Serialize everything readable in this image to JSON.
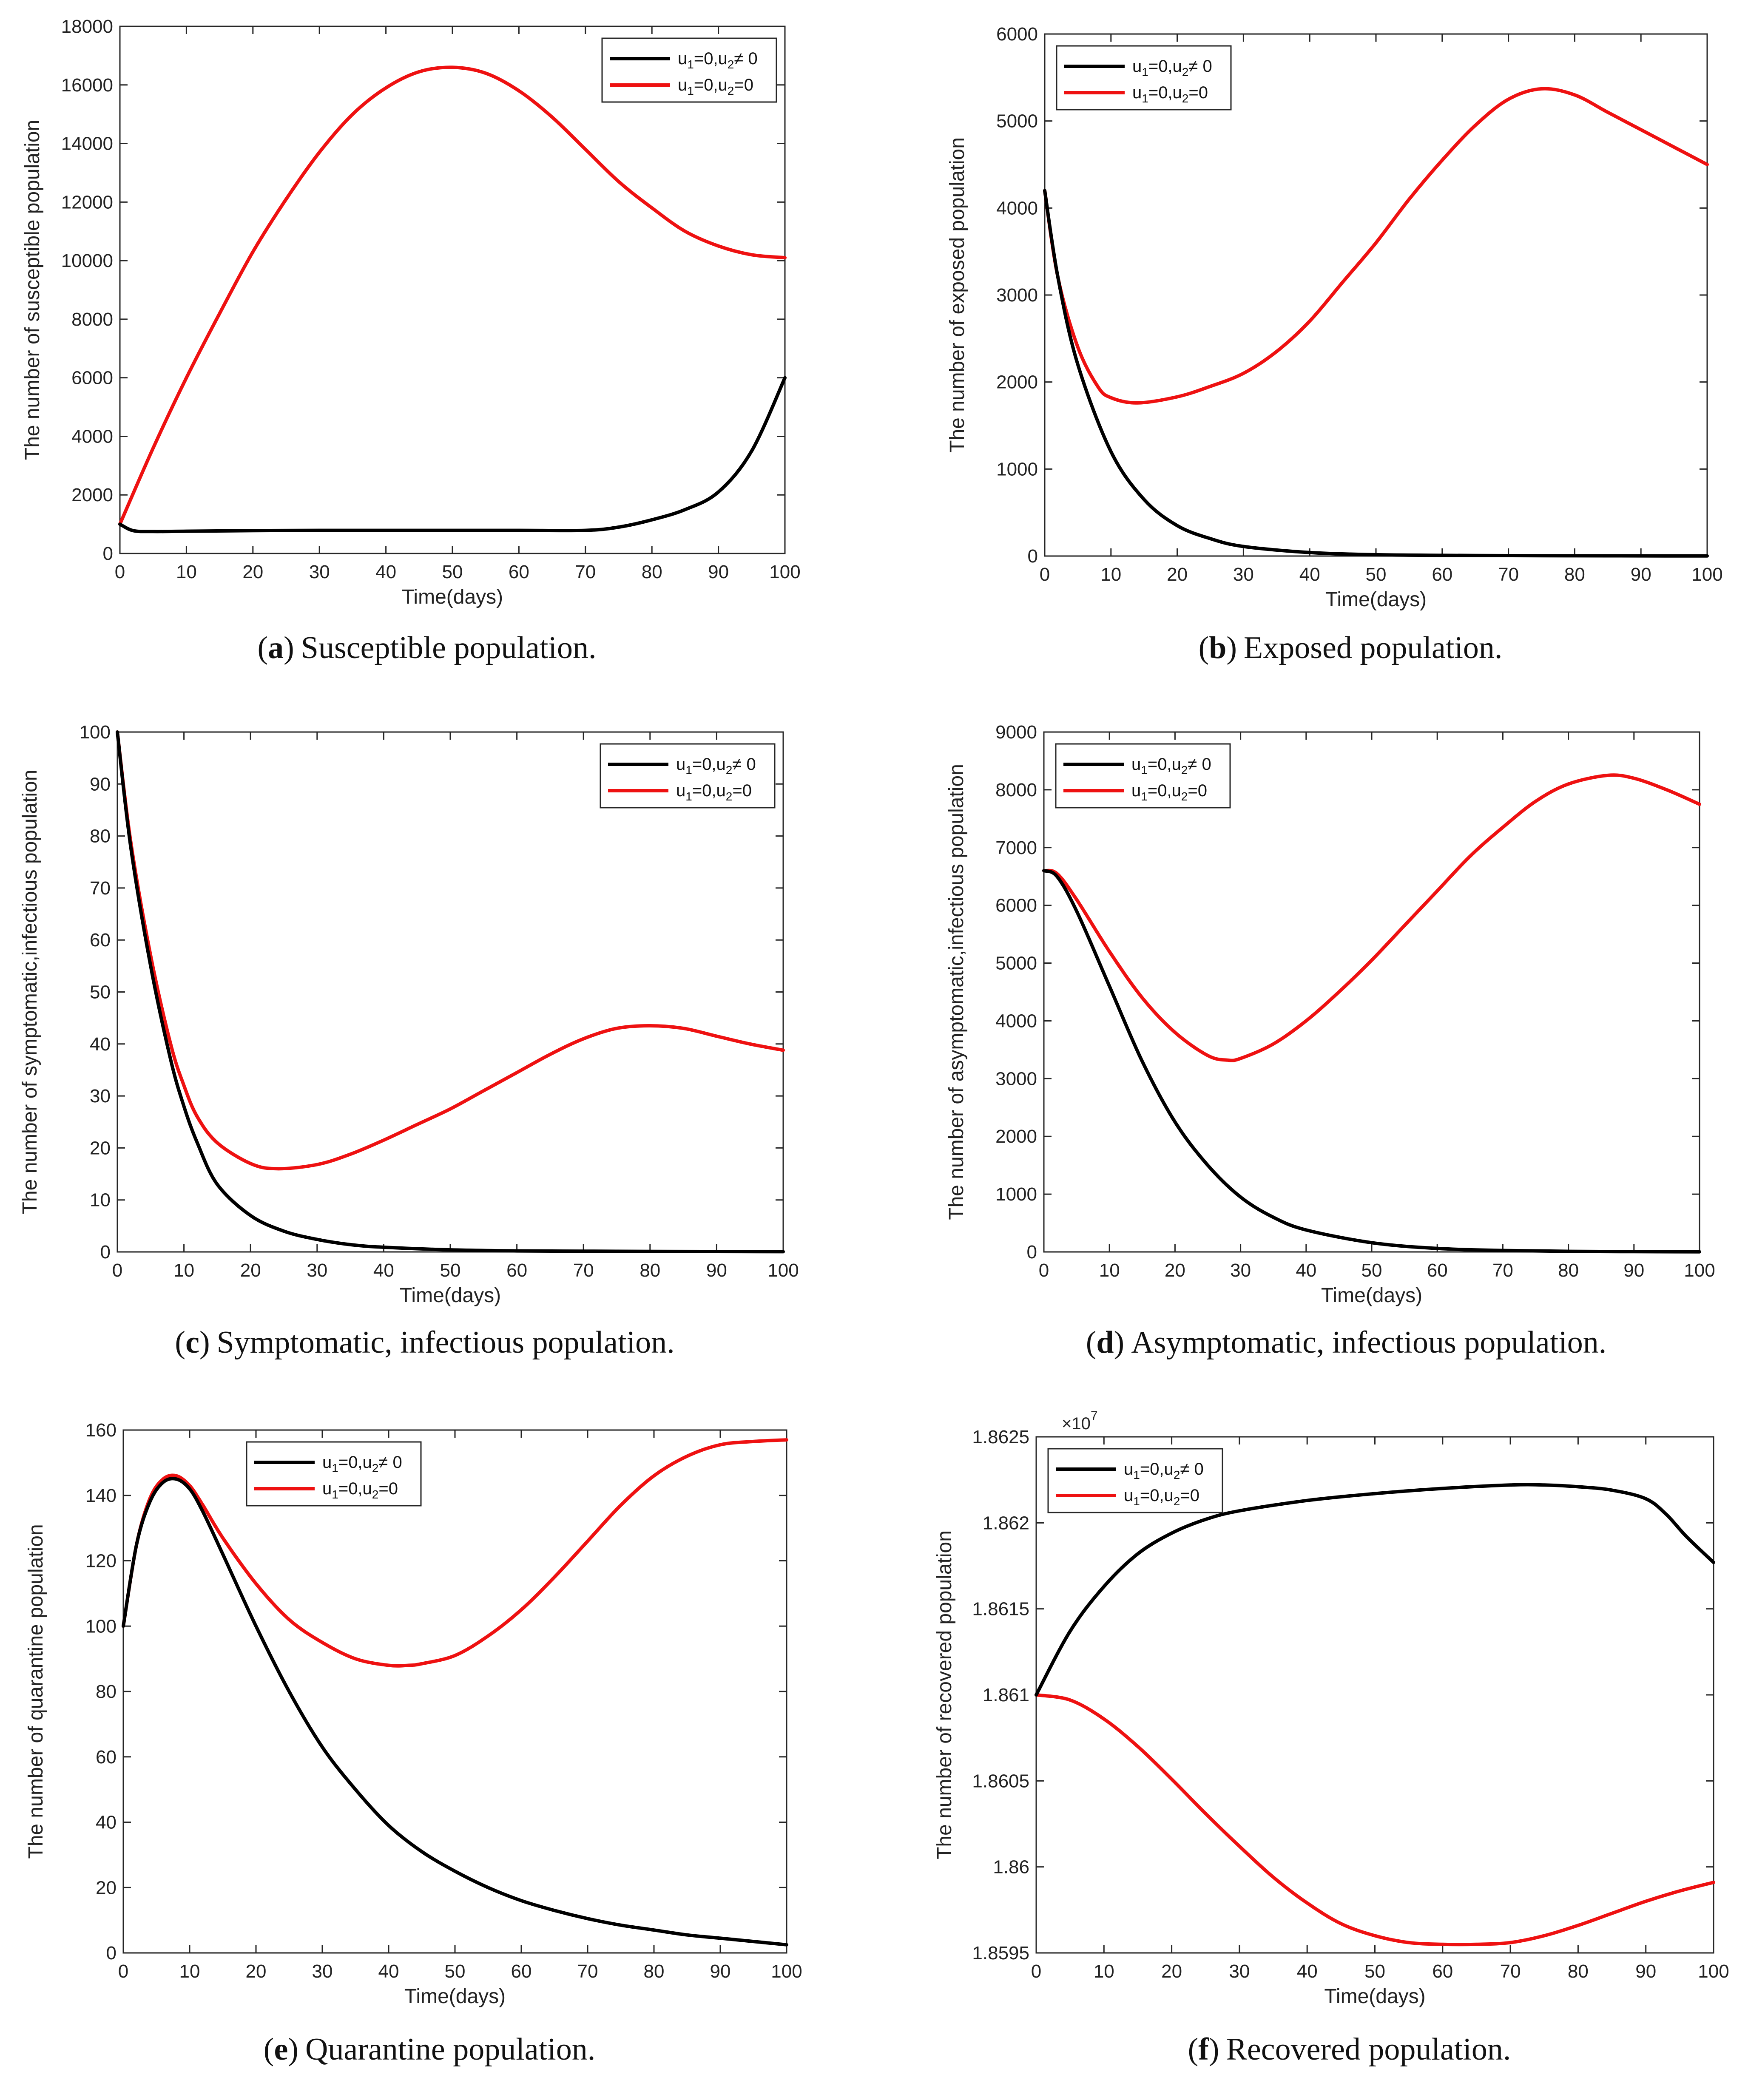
{
  "colors": {
    "control": "#000000",
    "nocontrol": "#ee1111"
  },
  "legend": {
    "control": {
      "a": "u",
      "b": "1",
      "c": "=0,u",
      "d": "2",
      "e": "≠ 0"
    },
    "nocontrol": {
      "a": "u",
      "b": "1",
      "c": "=0,u",
      "d": "2",
      "e": "=0"
    }
  },
  "chart_data": [
    {
      "id": "a",
      "type": "line",
      "caption_letter": "a",
      "caption_open": "(",
      "caption_close": ")",
      "caption_text": "Susceptible population.",
      "xlabel": "Time(days)",
      "ylabel": "The number of susceptible population",
      "xlim": [
        0,
        100
      ],
      "ylim": [
        0,
        18000
      ],
      "xticks": [
        0,
        10,
        20,
        30,
        40,
        50,
        60,
        70,
        80,
        90,
        100
      ],
      "xtick_labels": [
        "0",
        "10",
        "20",
        "30",
        "40",
        "50",
        "60",
        "70",
        "80",
        "90",
        "100"
      ],
      "yticks": [
        0,
        2000,
        4000,
        6000,
        8000,
        10000,
        12000,
        14000,
        16000,
        18000
      ],
      "ytick_labels": [
        "0",
        "2000",
        "4000",
        "6000",
        "8000",
        "10000",
        "12000",
        "14000",
        "16000",
        "18000"
      ],
      "legend_position": "top-right",
      "series": [
        {
          "name": "u1=0,u2≠0",
          "key": "control",
          "x": [
            0,
            2,
            5,
            10,
            20,
            30,
            40,
            50,
            60,
            70,
            75,
            80,
            85,
            90,
            95,
            100
          ],
          "y": [
            1000,
            780,
            750,
            760,
            780,
            790,
            790,
            790,
            790,
            790,
            900,
            1150,
            1500,
            2100,
            3500,
            6000
          ]
        },
        {
          "name": "u1=0,u2=0",
          "key": "nocontrol",
          "x": [
            0,
            5,
            10,
            15,
            20,
            25,
            30,
            35,
            40,
            45,
            50,
            55,
            60,
            65,
            70,
            75,
            80,
            85,
            90,
            95,
            100
          ],
          "y": [
            1000,
            3600,
            6000,
            8200,
            10300,
            12100,
            13700,
            15000,
            15900,
            16450,
            16600,
            16400,
            15800,
            14900,
            13800,
            12700,
            11800,
            11000,
            10500,
            10200,
            10100
          ]
        }
      ]
    },
    {
      "id": "b",
      "type": "line",
      "caption_letter": "b",
      "caption_open": "(",
      "caption_close": ")",
      "caption_text": "Exposed population.",
      "xlabel": "Time(days)",
      "ylabel": "The number of exposed population",
      "xlim": [
        0,
        100
      ],
      "ylim": [
        0,
        6000
      ],
      "xticks": [
        0,
        10,
        20,
        30,
        40,
        50,
        60,
        70,
        80,
        90,
        100
      ],
      "xtick_labels": [
        "0",
        "10",
        "20",
        "30",
        "40",
        "50",
        "60",
        "70",
        "80",
        "90",
        "100"
      ],
      "yticks": [
        0,
        1000,
        2000,
        3000,
        4000,
        5000,
        6000
      ],
      "ytick_labels": [
        "0",
        "1000",
        "2000",
        "3000",
        "4000",
        "5000",
        "6000"
      ],
      "legend_position": "top-left",
      "series": [
        {
          "name": "u1=0,u2≠0",
          "key": "control",
          "x": [
            0,
            2,
            5,
            10,
            15,
            20,
            25,
            30,
            40,
            50,
            60,
            70,
            80,
            90,
            100
          ],
          "y": [
            4200,
            3200,
            2200,
            1200,
            650,
            350,
            200,
            110,
            40,
            15,
            8,
            5,
            3,
            2,
            1
          ]
        },
        {
          "name": "u1=0,u2=0",
          "key": "nocontrol",
          "x": [
            0,
            2,
            5,
            8,
            10,
            14,
            20,
            25,
            30,
            35,
            40,
            45,
            50,
            55,
            60,
            65,
            70,
            75,
            80,
            85,
            90,
            95,
            100
          ],
          "y": [
            4200,
            3200,
            2400,
            1950,
            1820,
            1760,
            1830,
            1950,
            2100,
            2350,
            2700,
            3150,
            3600,
            4100,
            4550,
            4950,
            5250,
            5370,
            5300,
            5100,
            4900,
            4700,
            4500
          ]
        }
      ]
    },
    {
      "id": "c",
      "type": "line",
      "caption_letter": "c",
      "caption_open": "(",
      "caption_close": ")",
      "caption_text": "Symptomatic, infectious population.",
      "xlabel": "Time(days)",
      "ylabel": "The number of symptomatic,infectious population",
      "xlim": [
        0,
        100
      ],
      "ylim": [
        0,
        100
      ],
      "xticks": [
        0,
        10,
        20,
        30,
        40,
        50,
        60,
        70,
        80,
        90,
        100
      ],
      "xtick_labels": [
        "0",
        "10",
        "20",
        "30",
        "40",
        "50",
        "60",
        "70",
        "80",
        "90",
        "100"
      ],
      "yticks": [
        0,
        10,
        20,
        30,
        40,
        50,
        60,
        70,
        80,
        90,
        100
      ],
      "ytick_labels": [
        "0",
        "10",
        "20",
        "30",
        "40",
        "50",
        "60",
        "70",
        "80",
        "90",
        "100"
      ],
      "legend_position": "top-right",
      "series": [
        {
          "name": "u1=0,u2≠0",
          "key": "control",
          "x": [
            0,
            2,
            5,
            8,
            10,
            12,
            15,
            20,
            25,
            30,
            35,
            40,
            50,
            60,
            70,
            80,
            90,
            100
          ],
          "y": [
            100,
            78,
            55,
            37,
            28,
            21,
            13,
            7,
            4,
            2.4,
            1.4,
            0.9,
            0.4,
            0.2,
            0.15,
            0.1,
            0.08,
            0.05
          ]
        },
        {
          "name": "u1=0,u2=0",
          "key": "nocontrol",
          "x": [
            0,
            2,
            5,
            8,
            10,
            12,
            15,
            20,
            24,
            30,
            35,
            40,
            45,
            50,
            55,
            60,
            65,
            70,
            75,
            80,
            85,
            90,
            95,
            100
          ],
          "y": [
            100,
            79,
            57,
            40,
            32,
            26,
            21,
            17,
            16,
            16.8,
            18.8,
            21.5,
            24.5,
            27.5,
            31,
            34.5,
            38,
            41,
            43,
            43.5,
            43,
            41.5,
            40,
            38.8
          ]
        }
      ]
    },
    {
      "id": "d",
      "type": "line",
      "caption_letter": "d",
      "caption_open": "(",
      "caption_close": ")",
      "caption_text": "Asymptomatic, infectious population.",
      "xlabel": "Time(days)",
      "ylabel": "The number of asymptomatic,infectious population",
      "xlim": [
        0,
        100
      ],
      "ylim": [
        0,
        9000
      ],
      "xticks": [
        0,
        10,
        20,
        30,
        40,
        50,
        60,
        70,
        80,
        90,
        100
      ],
      "xtick_labels": [
        "0",
        "10",
        "20",
        "30",
        "40",
        "50",
        "60",
        "70",
        "80",
        "90",
        "100"
      ],
      "yticks": [
        0,
        1000,
        2000,
        3000,
        4000,
        5000,
        6000,
        7000,
        8000,
        9000
      ],
      "ytick_labels": [
        "0",
        "1000",
        "2000",
        "3000",
        "4000",
        "5000",
        "6000",
        "7000",
        "8000",
        "9000"
      ],
      "legend_position": "top-left",
      "series": [
        {
          "name": "u1=0,u2≠0",
          "key": "control",
          "x": [
            0,
            2,
            5,
            10,
            15,
            20,
            25,
            30,
            35,
            40,
            50,
            60,
            70,
            80,
            90,
            100
          ],
          "y": [
            6600,
            6500,
            5900,
            4600,
            3300,
            2250,
            1500,
            950,
            600,
            380,
            160,
            60,
            25,
            10,
            5,
            2
          ]
        },
        {
          "name": "u1=0,u2=0",
          "key": "nocontrol",
          "x": [
            0,
            2,
            5,
            10,
            15,
            20,
            25,
            28,
            30,
            35,
            40,
            45,
            50,
            55,
            60,
            65,
            70,
            75,
            80,
            86,
            90,
            95,
            100
          ],
          "y": [
            6600,
            6550,
            6100,
            5200,
            4400,
            3800,
            3400,
            3320,
            3350,
            3600,
            4000,
            4500,
            5050,
            5650,
            6250,
            6850,
            7350,
            7800,
            8100,
            8250,
            8200,
            8000,
            7750
          ]
        }
      ]
    },
    {
      "id": "e",
      "type": "line",
      "caption_letter": "e",
      "caption_open": "(",
      "caption_close": ")",
      "caption_text": "Quarantine population.",
      "xlabel": "Time(days)",
      "ylabel": "The number of quarantine population",
      "xlim": [
        0,
        100
      ],
      "ylim": [
        0,
        160
      ],
      "xticks": [
        0,
        10,
        20,
        30,
        40,
        50,
        60,
        70,
        80,
        90,
        100
      ],
      "xtick_labels": [
        "0",
        "10",
        "20",
        "30",
        "40",
        "50",
        "60",
        "70",
        "80",
        "90",
        "100"
      ],
      "yticks": [
        0,
        20,
        40,
        60,
        80,
        100,
        120,
        140,
        160
      ],
      "ytick_labels": [
        "0",
        "20",
        "40",
        "60",
        "80",
        "100",
        "120",
        "140",
        "160"
      ],
      "legend_position": "top-center",
      "series": [
        {
          "name": "u1=0,u2≠0",
          "key": "control",
          "x": [
            0,
            2,
            4,
            6,
            8,
            10,
            12,
            15,
            20,
            25,
            30,
            35,
            40,
            45,
            50,
            55,
            60,
            65,
            70,
            75,
            80,
            85,
            90,
            95,
            100
          ],
          "y": [
            100,
            125,
            138,
            144,
            145,
            142,
            135,
            122,
            100,
            80,
            63,
            50,
            39,
            31,
            25,
            20,
            16,
            13,
            10.5,
            8.5,
            7,
            5.5,
            4.5,
            3.5,
            2.5
          ]
        },
        {
          "name": "u1=0,u2=0",
          "key": "nocontrol",
          "x": [
            0,
            2,
            4,
            6,
            8,
            10,
            12,
            15,
            20,
            25,
            30,
            35,
            40,
            43,
            45,
            50,
            55,
            60,
            65,
            70,
            75,
            80,
            85,
            90,
            95,
            100
          ],
          "y": [
            100,
            125,
            139,
            145,
            146,
            143,
            137,
            127,
            113,
            102,
            95,
            90,
            88,
            88,
            88.5,
            91,
            97,
            105,
            115,
            126,
            137,
            146,
            152,
            155.5,
            156.5,
            157
          ]
        }
      ]
    },
    {
      "id": "f",
      "type": "line",
      "caption_letter": "f",
      "caption_open": "(",
      "caption_close": ")",
      "caption_text": "Recovered population.",
      "xlabel": "Time(days)",
      "ylabel": "The number of recovered population",
      "xlim": [
        0,
        100
      ],
      "ylim": [
        1.8595,
        1.8625
      ],
      "exponent_label": "×10",
      "exponent_power": "7",
      "xticks": [
        0,
        10,
        20,
        30,
        40,
        50,
        60,
        70,
        80,
        90,
        100
      ],
      "xtick_labels": [
        "0",
        "10",
        "20",
        "30",
        "40",
        "50",
        "60",
        "70",
        "80",
        "90",
        "100"
      ],
      "yticks": [
        1.8595,
        1.86,
        1.8605,
        1.861,
        1.8615,
        1.862,
        1.8625
      ],
      "ytick_labels": [
        "1.8595",
        "1.86",
        "1.8605",
        "1.861",
        "1.8615",
        "1.862",
        "1.8625"
      ],
      "legend_position": "top-left",
      "series": [
        {
          "name": "u1=0,u2≠0",
          "key": "control",
          "x": [
            0,
            5,
            10,
            15,
            20,
            25,
            30,
            40,
            50,
            60,
            70,
            75,
            80,
            85,
            90,
            93,
            96,
            100
          ],
          "y": [
            1.861,
            1.86137,
            1.86163,
            1.86182,
            1.86194,
            1.86202,
            1.86207,
            1.86213,
            1.86217,
            1.8622,
            1.86222,
            1.86222,
            1.86221,
            1.86219,
            1.86214,
            1.86205,
            1.86192,
            1.86177
          ]
        },
        {
          "name": "u1=0,u2=0",
          "key": "nocontrol",
          "x": [
            0,
            5,
            10,
            15,
            20,
            25,
            30,
            35,
            40,
            45,
            50,
            55,
            60,
            65,
            70,
            75,
            80,
            85,
            90,
            95,
            100
          ],
          "y": [
            1.861,
            1.86097,
            1.86086,
            1.8607,
            1.86051,
            1.86031,
            1.86012,
            1.85994,
            1.85979,
            1.85967,
            1.8596,
            1.85956,
            1.85955,
            1.85955,
            1.85956,
            1.8596,
            1.85966,
            1.85973,
            1.8598,
            1.85986,
            1.85991
          ]
        }
      ]
    }
  ]
}
